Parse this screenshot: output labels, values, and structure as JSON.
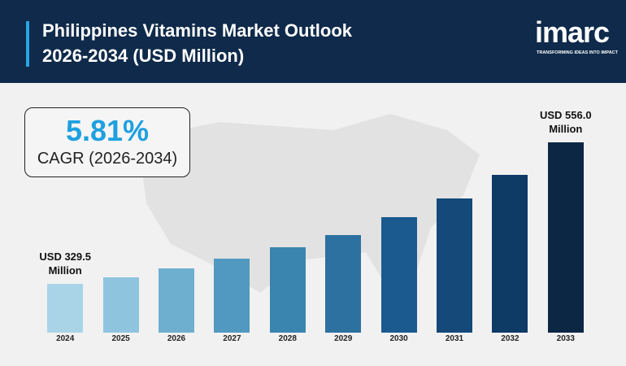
{
  "header": {
    "logo": "imarc",
    "tagline": "TRANSFORMING IDEAS INTO IMPACT"
  },
  "chart_data": {
    "type": "bar",
    "title": "Philippines Vitamins Market Outlook 2026-2034 (USD Million)",
    "callout": {
      "value": "5.81%",
      "label": "CAGR (2026-2034)"
    },
    "categories": [
      "2024",
      "2025",
      "2026",
      "2027",
      "2028",
      "2029",
      "2030",
      "2031",
      "2032",
      "2033"
    ],
    "values": [
      329.5,
      339.9,
      354.2,
      369.9,
      388.1,
      407.6,
      436.3,
      466.3,
      504.0,
      556.0
    ],
    "value_labels": [
      "USD 329.5 Million",
      null,
      null,
      null,
      null,
      null,
      null,
      null,
      null,
      "USD 556.0 Million"
    ],
    "colors": [
      "#a9d4e8",
      "#8fc4de",
      "#6eafd0",
      "#5199c0",
      "#3a85b0",
      "#2c71a0",
      "#1b5a8e",
      "#14497a",
      "#0e3a66",
      "#0b2744"
    ]
  }
}
